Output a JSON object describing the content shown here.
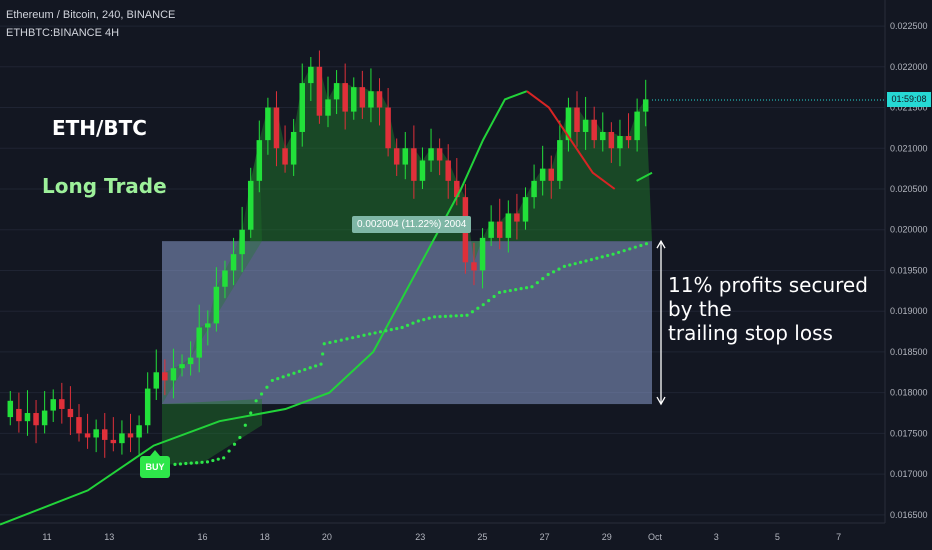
{
  "header": {
    "symbol_line": "Ethereum / Bitcoin, 240, BINANCE",
    "sub_line": "ETHBTC:BINANCE 4H"
  },
  "labels": {
    "pair": "ETH/BTC",
    "trade": "Long Trade",
    "buy": "BUY",
    "measure": "0.002004 (11.22%) 2004",
    "price_tag": "01:59:08",
    "note_lines": [
      "11% profits secured",
      "by the",
      "trailing stop loss"
    ]
  },
  "colors": {
    "background": "#131722",
    "up_candle": "#22e03a",
    "down_candle": "#e0303a",
    "ma_up": "#22d33a",
    "ma_down": "#d82424",
    "stop_dots": "#2ee64a",
    "box_fill": "#8a9ccc",
    "profit_fill": "#1f7a2a",
    "axis_text": "#b2b5be"
  },
  "chart_data": {
    "type": "candlestick",
    "x_ticks": [
      "11",
      "13",
      "16",
      "18",
      "20",
      "23",
      "25",
      "27",
      "29",
      "Oct",
      "3",
      "5",
      "7"
    ],
    "y_ticks": [
      "0.022500",
      "0.022000",
      "0.021500",
      "0.021000",
      "0.020500",
      "0.020000",
      "0.019500",
      "0.019000",
      "0.018500",
      "0.018000",
      "0.017500",
      "0.017000",
      "0.016500"
    ],
    "ylim": [
      0.0164,
      0.02282
    ],
    "entry_price": 0.01786,
    "target_price": 0.01986,
    "moving_average": {
      "points": [
        [
          0,
          0.01638
        ],
        [
          4,
          0.0168
        ],
        [
          7,
          0.01735
        ],
        [
          10,
          0.01765
        ],
        [
          13,
          0.0178
        ],
        [
          15,
          0.018
        ],
        [
          17,
          0.0185
        ],
        [
          19,
          0.0195
        ],
        [
          21,
          0.0205
        ],
        [
          22,
          0.0211
        ],
        [
          23,
          0.0216
        ],
        [
          24,
          0.0217
        ],
        [
          25,
          0.0215
        ],
        [
          26,
          0.0211
        ],
        [
          27,
          0.0207
        ],
        [
          28,
          0.0205
        ],
        [
          29,
          0.0206
        ],
        [
          29.7,
          0.0207
        ]
      ],
      "down_from": 24,
      "down_to": 28.3
    },
    "trailing_stop": [
      [
        15,
        0.01712
      ],
      [
        16,
        0.01715
      ],
      [
        16.5,
        0.0172
      ],
      [
        17,
        0.01745
      ],
      [
        17.5,
        0.0179
      ],
      [
        18,
        0.01815
      ],
      [
        19.5,
        0.01835
      ],
      [
        19.6,
        0.0186
      ],
      [
        21,
        0.01872
      ],
      [
        22,
        0.0188
      ],
      [
        22.5,
        0.01888
      ],
      [
        23,
        0.01893
      ],
      [
        24,
        0.01895
      ],
      [
        24.5,
        0.01908
      ],
      [
        25,
        0.01923
      ],
      [
        26,
        0.0193
      ],
      [
        26.5,
        0.01945
      ],
      [
        27,
        0.01955
      ],
      [
        28,
        0.01965
      ],
      [
        28.5,
        0.0197
      ],
      [
        29.7,
        0.01985
      ]
    ]
  }
}
